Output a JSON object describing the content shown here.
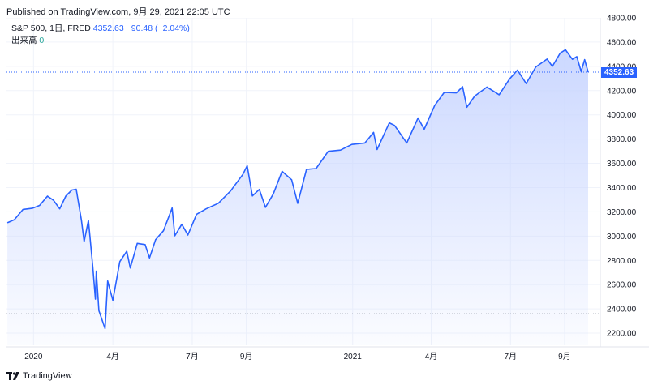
{
  "header": {
    "published": "Published on TradingView.com, 9月 29, 2021 22:05 UTC"
  },
  "legend": {
    "symbol": "S&P 500, 1日, FRED",
    "last": "4352.63",
    "change": "−90.48 (−2.04%)",
    "volume_label": "出来高",
    "volume_value": "0"
  },
  "price_badge": "4352.63",
  "footer": {
    "brand": "TradingView"
  },
  "colors": {
    "line": "#2962ff",
    "area_top": "#c9d6ff",
    "badge": "#2962ff"
  },
  "chart_data": {
    "type": "area",
    "title": "",
    "xlabel": "",
    "ylabel": "",
    "ylim": [
      2100,
      4800
    ],
    "yticks": [
      2200,
      2400,
      2600,
      2800,
      3000,
      3200,
      3400,
      3600,
      3800,
      4000,
      4200,
      4400,
      4600,
      4800
    ],
    "ytick_labels": [
      "2200.00",
      "2400.00",
      "2600.00",
      "2800.00",
      "3000.00",
      "3200.00",
      "3400.00",
      "3600.00",
      "3800.00",
      "4000.00",
      "4200.00",
      "4400.00",
      "4600.00",
      "4800.00"
    ],
    "xlim": [
      "2019-12-01",
      "2021-10-12"
    ],
    "xticks": [
      {
        "date": "2020-01-01",
        "label": "2020"
      },
      {
        "date": "2020-04-01",
        "label": "4月"
      },
      {
        "date": "2020-07-01",
        "label": "7月"
      },
      {
        "date": "2020-09-01",
        "label": "9月"
      },
      {
        "date": "2021-01-01",
        "label": "2021"
      },
      {
        "date": "2021-04-01",
        "label": "4月"
      },
      {
        "date": "2021-07-01",
        "label": "7月"
      },
      {
        "date": "2021-09-01",
        "label": "9月"
      }
    ],
    "reference_lines": [
      4352.63,
      2360
    ],
    "series": [
      {
        "points": [
          [
            "2019-12-02",
            3110
          ],
          [
            "2019-12-10",
            3135
          ],
          [
            "2019-12-20",
            3220
          ],
          [
            "2019-12-31",
            3230
          ],
          [
            "2020-01-08",
            3253
          ],
          [
            "2020-01-17",
            3330
          ],
          [
            "2020-01-24",
            3295
          ],
          [
            "2020-01-31",
            3225
          ],
          [
            "2020-02-07",
            3330
          ],
          [
            "2020-02-14",
            3380
          ],
          [
            "2020-02-19",
            3386
          ],
          [
            "2020-02-25",
            3130
          ],
          [
            "2020-02-28",
            2954
          ],
          [
            "2020-03-04",
            3130
          ],
          [
            "2020-03-09",
            2746
          ],
          [
            "2020-03-12",
            2480
          ],
          [
            "2020-03-13",
            2711
          ],
          [
            "2020-03-16",
            2386
          ],
          [
            "2020-03-23",
            2237
          ],
          [
            "2020-03-26",
            2630
          ],
          [
            "2020-04-01",
            2470
          ],
          [
            "2020-04-09",
            2790
          ],
          [
            "2020-04-17",
            2875
          ],
          [
            "2020-04-21",
            2737
          ],
          [
            "2020-04-29",
            2940
          ],
          [
            "2020-05-08",
            2930
          ],
          [
            "2020-05-13",
            2820
          ],
          [
            "2020-05-20",
            2970
          ],
          [
            "2020-05-29",
            3044
          ],
          [
            "2020-06-08",
            3232
          ],
          [
            "2020-06-11",
            3002
          ],
          [
            "2020-06-19",
            3098
          ],
          [
            "2020-06-26",
            3009
          ],
          [
            "2020-07-06",
            3180
          ],
          [
            "2020-07-17",
            3225
          ],
          [
            "2020-07-31",
            3271
          ],
          [
            "2020-08-14",
            3372
          ],
          [
            "2020-08-28",
            3508
          ],
          [
            "2020-09-02",
            3580
          ],
          [
            "2020-09-08",
            3331
          ],
          [
            "2020-09-16",
            3385
          ],
          [
            "2020-09-23",
            3237
          ],
          [
            "2020-10-02",
            3348
          ],
          [
            "2020-10-12",
            3534
          ],
          [
            "2020-10-23",
            3465
          ],
          [
            "2020-10-30",
            3270
          ],
          [
            "2020-11-09",
            3550
          ],
          [
            "2020-11-20",
            3557
          ],
          [
            "2020-12-04",
            3699
          ],
          [
            "2020-12-18",
            3709
          ],
          [
            "2020-12-31",
            3756
          ],
          [
            "2021-01-15",
            3768
          ],
          [
            "2021-01-25",
            3855
          ],
          [
            "2021-01-29",
            3714
          ],
          [
            "2021-02-12",
            3934
          ],
          [
            "2021-02-18",
            3913
          ],
          [
            "2021-03-04",
            3768
          ],
          [
            "2021-03-17",
            3974
          ],
          [
            "2021-03-24",
            3881
          ],
          [
            "2021-04-05",
            4077
          ],
          [
            "2021-04-16",
            4185
          ],
          [
            "2021-04-30",
            4181
          ],
          [
            "2021-05-07",
            4232
          ],
          [
            "2021-05-12",
            4063
          ],
          [
            "2021-05-21",
            4155
          ],
          [
            "2021-06-04",
            4229
          ],
          [
            "2021-06-18",
            4166
          ],
          [
            "2021-06-30",
            4297
          ],
          [
            "2021-07-09",
            4369
          ],
          [
            "2021-07-19",
            4258
          ],
          [
            "2021-07-30",
            4395
          ],
          [
            "2021-08-12",
            4460
          ],
          [
            "2021-08-18",
            4400
          ],
          [
            "2021-08-27",
            4509
          ],
          [
            "2021-09-02",
            4537
          ],
          [
            "2021-09-10",
            4458
          ],
          [
            "2021-09-15",
            4480
          ],
          [
            "2021-09-20",
            4358
          ],
          [
            "2021-09-24",
            4455
          ],
          [
            "2021-09-28",
            4352.63
          ]
        ]
      }
    ]
  }
}
